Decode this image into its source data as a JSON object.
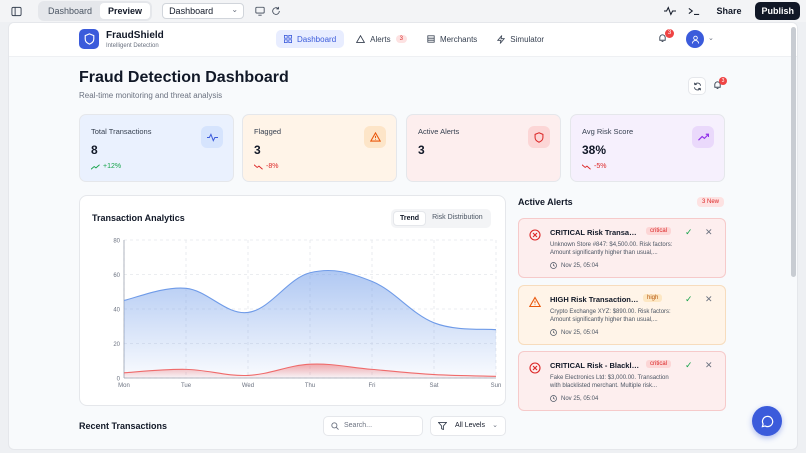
{
  "editor": {
    "tabs": [
      {
        "label": "Dashboard",
        "active": false
      },
      {
        "label": "Preview",
        "active": true
      }
    ],
    "page_select": "Dashboard",
    "share_label": "Share",
    "publish_label": "Publish"
  },
  "app": {
    "brand": "FraudShield",
    "tagline": "Intelligent Detection",
    "nav": [
      {
        "label": "Dashboard",
        "icon": "grid-icon",
        "active": true
      },
      {
        "label": "Alerts",
        "icon": "warning-icon",
        "badge": "3"
      },
      {
        "label": "Merchants",
        "icon": "building-icon"
      },
      {
        "label": "Simulator",
        "icon": "zap-icon"
      }
    ],
    "notif_count": "3",
    "accent": "#3b5bdb"
  },
  "header": {
    "title": "Fraud Detection Dashboard",
    "subtitle": "Real-time monitoring and threat analysis",
    "notif_count": "3"
  },
  "stats": [
    {
      "label": "Total Transactions",
      "value": "8",
      "delta": "+12%",
      "trend": "up",
      "icon": "activity-icon",
      "bg": "#eaf1fe",
      "icon_bg": "#d6e4fd",
      "icon_color": "#3b5bdb"
    },
    {
      "label": "Flagged",
      "value": "3",
      "delta": "-8%",
      "trend": "down",
      "icon": "warning-icon",
      "bg": "#fff4e8",
      "icon_bg": "#fde5c8",
      "icon_color": "#ea580c"
    },
    {
      "label": "Active Alerts",
      "value": "3",
      "delta": "",
      "trend": "",
      "icon": "shield-icon",
      "bg": "#fdeeee",
      "icon_bg": "#fcd6d6",
      "icon_color": "#dc2626"
    },
    {
      "label": "Avg Risk Score",
      "value": "38%",
      "delta": "-5%",
      "trend": "down",
      "icon": "trending-up-icon",
      "bg": "#f6f0fd",
      "icon_bg": "#ead9fb",
      "icon_color": "#9333ea"
    }
  ],
  "analytics": {
    "title": "Transaction Analytics",
    "tabs": [
      {
        "label": "Trend",
        "active": true
      },
      {
        "label": "Risk Distribution",
        "active": false
      }
    ]
  },
  "chart_data": {
    "type": "area",
    "x": [
      "Mon",
      "Tue",
      "Wed",
      "Thu",
      "Fri",
      "Sat",
      "Sun"
    ],
    "ylim": [
      0,
      80
    ],
    "yticks": [
      0,
      20,
      40,
      60,
      80
    ],
    "grid": true,
    "series": [
      {
        "values": [
          45,
          52,
          38,
          61,
          56,
          32,
          28
        ],
        "color": "#6f9be8"
      },
      {
        "values": [
          3,
          5,
          1.5,
          8,
          5,
          2,
          1
        ],
        "color": "#ef6b6b"
      }
    ]
  },
  "alerts": {
    "title": "Active Alerts",
    "new_badge": "3 New",
    "items": [
      {
        "title": "CRITICAL Risk Transactio...",
        "level": "critical",
        "desc": "Unknown Store #847: $4,500.00. Risk factors: Amount significantly higher than usual,...",
        "time": "Nov 25, 05:04",
        "kind": "crit"
      },
      {
        "title": "HIGH Risk Transaction Det...",
        "level": "high",
        "desc": "Crypto Exchange XYZ: $890.00. Risk factors: Amount significantly higher than usual,...",
        "time": "Nov 25, 05:04",
        "kind": "high"
      },
      {
        "title": "CRITICAL Risk - Blackliste...",
        "level": "critical",
        "desc": "Fake Electronics Ltd: $3,000.00. Transaction with blacklisted merchant. Multiple risk...",
        "time": "Nov 25, 05:04",
        "kind": "crit"
      }
    ]
  },
  "recent": {
    "title": "Recent Transactions",
    "search_placeholder": "Search...",
    "level_filter": "All Levels"
  }
}
